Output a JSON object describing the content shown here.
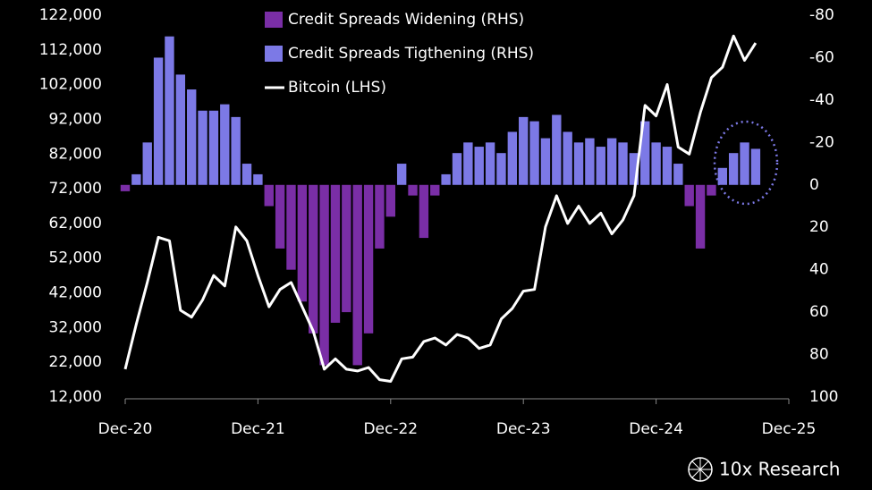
{
  "chart_data": {
    "type": "bar",
    "x": [
      "2020-12",
      "2021-01",
      "2021-02",
      "2021-03",
      "2021-04",
      "2021-05",
      "2021-06",
      "2021-07",
      "2021-08",
      "2021-09",
      "2021-10",
      "2021-11",
      "2021-12",
      "2022-01",
      "2022-02",
      "2022-03",
      "2022-04",
      "2022-05",
      "2022-06",
      "2022-07",
      "2022-08",
      "2022-09",
      "2022-10",
      "2022-11",
      "2022-12",
      "2023-01",
      "2023-02",
      "2023-03",
      "2023-04",
      "2023-05",
      "2023-06",
      "2023-07",
      "2023-08",
      "2023-09",
      "2023-10",
      "2023-11",
      "2023-12",
      "2024-01",
      "2024-02",
      "2024-03",
      "2024-04",
      "2024-05",
      "2024-06",
      "2024-07",
      "2024-08",
      "2024-09",
      "2024-10",
      "2024-11",
      "2024-12",
      "2025-01",
      "2025-02",
      "2025-03",
      "2025-04",
      "2025-05",
      "2025-06",
      "2025-07",
      "2025-08",
      "2025-09"
    ],
    "xlim": [
      "2020-12",
      "2025-12"
    ],
    "xticks": [
      {
        "value": "2020-12",
        "label": "Dec-20"
      },
      {
        "value": "2021-12",
        "label": "Dec-21"
      },
      {
        "value": "2022-12",
        "label": "Dec-22"
      },
      {
        "value": "2023-12",
        "label": "Dec-23"
      },
      {
        "value": "2024-12",
        "label": "Dec-24"
      },
      {
        "value": "2025-12",
        "label": "Dec-25"
      }
    ],
    "ylim": [
      12000,
      122000
    ],
    "yticks": [
      {
        "value": 12000,
        "label": "12,000"
      },
      {
        "value": 22000,
        "label": "22,000"
      },
      {
        "value": 32000,
        "label": "32,000"
      },
      {
        "value": 42000,
        "label": "42,000"
      },
      {
        "value": 52000,
        "label": "52,000"
      },
      {
        "value": 62000,
        "label": "62,000"
      },
      {
        "value": 72000,
        "label": "72,000"
      },
      {
        "value": 82000,
        "label": "82,000"
      },
      {
        "value": 92000,
        "label": "92,000"
      },
      {
        "value": 102000,
        "label": "102,000"
      },
      {
        "value": 112000,
        "label": "112,000"
      },
      {
        "value": 122000,
        "label": "122,000"
      }
    ],
    "y2lim": [
      100,
      -80
    ],
    "y2ticks": [
      100,
      80,
      60,
      40,
      20,
      0,
      -20,
      -40,
      -60,
      -80
    ],
    "series": [
      {
        "name": "Credit Spreads Widening (RHS)",
        "color": "#7a2ea6",
        "axis": "y2",
        "values": [
          3,
          null,
          null,
          null,
          null,
          null,
          null,
          null,
          null,
          null,
          null,
          null,
          null,
          10,
          30,
          40,
          55,
          70,
          85,
          65,
          60,
          85,
          70,
          30,
          15,
          null,
          5,
          25,
          5,
          null,
          null,
          null,
          null,
          null,
          null,
          null,
          null,
          null,
          null,
          null,
          null,
          null,
          null,
          null,
          null,
          null,
          null,
          null,
          null,
          null,
          null,
          10,
          30,
          5,
          null,
          null,
          null,
          null
        ]
      },
      {
        "name": "Credit Spreads Tigthening (RHS)",
        "color": "#7c79e6",
        "axis": "y2",
        "values": [
          null,
          -5,
          -20,
          -60,
          -70,
          -52,
          -45,
          -35,
          -35,
          -38,
          -32,
          -10,
          -5,
          null,
          null,
          null,
          null,
          null,
          null,
          null,
          null,
          null,
          null,
          null,
          null,
          -10,
          null,
          null,
          null,
          -5,
          -15,
          -20,
          -18,
          -20,
          -15,
          -25,
          -32,
          -30,
          -22,
          -33,
          -25,
          -20,
          -22,
          -18,
          -22,
          -20,
          -15,
          -30,
          -20,
          -18,
          -10,
          null,
          null,
          null,
          -8,
          -15,
          -20,
          -17
        ]
      },
      {
        "name": "Bitcoin (LHS)",
        "color": "#ffffff",
        "type": "line",
        "values": [
          20000,
          33000,
          45000,
          58000,
          57000,
          37000,
          35000,
          40000,
          47000,
          44000,
          61000,
          57000,
          47000,
          38000,
          43000,
          45000,
          38000,
          31000,
          20000,
          23000,
          20000,
          19500,
          20500,
          17000,
          16500,
          23000,
          23500,
          28000,
          29000,
          27000,
          30000,
          29000,
          26000,
          27000,
          34500,
          37500,
          42500,
          43000,
          61000,
          70000,
          62000,
          67000,
          62000,
          65000,
          59000,
          63000,
          70000,
          96000,
          93000,
          102000,
          84000,
          82000,
          94000,
          104000,
          107000,
          116000,
          109000,
          114000
        ]
      }
    ],
    "brand": "10x Research"
  }
}
